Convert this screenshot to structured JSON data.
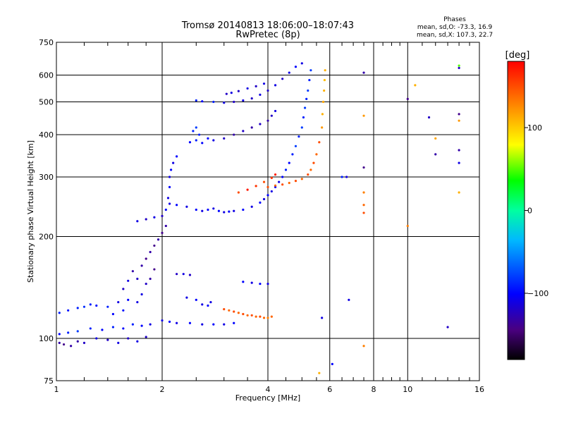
{
  "chart_data": {
    "type": "scatter",
    "title": "Tromsø 20140813 18:06:00–18:07:43",
    "subtitle": "RwPretec (8p)",
    "xlabel": "Frequency [MHz]",
    "ylabel": "Stationary phase Virtual Height [km]",
    "x_scale": "log",
    "y_scale": "log",
    "xlim": [
      1,
      16
    ],
    "ylim": [
      75,
      750
    ],
    "x_ticks": [
      1,
      2,
      4,
      6,
      8,
      10,
      16
    ],
    "x_tick_labels": [
      "1",
      "2",
      "4",
      "6",
      "8",
      "10",
      "16"
    ],
    "y_ticks": [
      75,
      100,
      200,
      300,
      400,
      500,
      600,
      750
    ],
    "y_tick_labels": [
      "75",
      "100",
      "200",
      "300",
      "400",
      "500",
      "600",
      "750"
    ],
    "x_minor_ticks": [
      1.2,
      1.4,
      1.6,
      1.8,
      2.5,
      3,
      3.5,
      4.5,
      5,
      5.5,
      6.5,
      7,
      7.5,
      8.5,
      9,
      9.5,
      11,
      12,
      13,
      14,
      15
    ],
    "grid": true,
    "phases": {
      "heading": "Phases",
      "line_o": "mean, sd,O: -73.3, 16.9",
      "line_x": "mean, sd,X: 107.3, 22.7"
    },
    "colorbar": {
      "label": "[deg]",
      "range": [
        -180,
        180
      ],
      "ticks": [
        100,
        0,
        -100
      ],
      "tick_labels": [
        "100",
        "0",
        "−100"
      ]
    },
    "series": [
      {
        "points": [
          [
            1.02,
            97,
            -130
          ],
          [
            1.05,
            96,
            -140
          ],
          [
            1.1,
            95,
            -130
          ],
          [
            1.15,
            98,
            -130
          ],
          [
            1.2,
            97,
            -120
          ],
          [
            1.3,
            100,
            -110
          ],
          [
            1.4,
            99,
            -120
          ],
          [
            1.5,
            97,
            -110
          ],
          [
            1.6,
            100,
            -120
          ],
          [
            1.7,
            98,
            -110
          ],
          [
            1.8,
            101,
            -120
          ]
        ]
      },
      {
        "points": [
          [
            1.02,
            103,
            -100
          ],
          [
            1.08,
            104,
            -90
          ],
          [
            1.15,
            105,
            -80
          ],
          [
            1.25,
            107,
            -90
          ],
          [
            1.35,
            106,
            -100
          ],
          [
            1.45,
            108,
            -90
          ],
          [
            1.55,
            107,
            -100
          ],
          [
            1.65,
            110,
            -90
          ],
          [
            1.75,
            109,
            -100
          ],
          [
            1.85,
            110,
            -110
          ]
        ]
      },
      {
        "points": [
          [
            1.02,
            119,
            -90
          ],
          [
            1.08,
            121,
            -95
          ],
          [
            1.15,
            123,
            -90
          ],
          [
            1.2,
            124,
            -85
          ],
          [
            1.25,
            126,
            -90
          ],
          [
            1.3,
            125,
            -95
          ],
          [
            1.4,
            124,
            -90
          ],
          [
            1.45,
            118,
            -100
          ],
          [
            1.55,
            121,
            -95
          ],
          [
            1.6,
            130,
            -100
          ],
          [
            1.7,
            128,
            -110
          ]
        ]
      },
      {
        "points": [
          [
            1.5,
            128,
            -110
          ],
          [
            1.55,
            140,
            -120
          ],
          [
            1.6,
            148,
            -110
          ],
          [
            1.65,
            158,
            -130
          ],
          [
            1.7,
            150,
            -120
          ],
          [
            1.75,
            164,
            -130
          ],
          [
            1.8,
            172,
            -140
          ],
          [
            1.85,
            180,
            -130
          ],
          [
            1.9,
            188,
            -140
          ],
          [
            1.95,
            196,
            -130
          ],
          [
            2,
            205,
            -140
          ],
          [
            2.05,
            215,
            -130
          ],
          [
            1.9,
            160,
            -140
          ],
          [
            1.85,
            150,
            -130
          ],
          [
            1.8,
            145,
            -120
          ],
          [
            1.75,
            135,
            -110
          ]
        ]
      },
      {
        "points": [
          [
            1.7,
            222,
            -110
          ],
          [
            1.8,
            225,
            -120
          ],
          [
            1.9,
            228,
            -110
          ],
          [
            2,
            230,
            -120
          ],
          [
            2.05,
            240,
            -100
          ],
          [
            2.08,
            260,
            -110
          ],
          [
            2.1,
            280,
            -100
          ],
          [
            2.1,
            300,
            -110
          ],
          [
            2.12,
            315,
            -100
          ],
          [
            2.15,
            330,
            -110
          ],
          [
            2.2,
            345,
            -100
          ]
        ]
      },
      {
        "points": [
          [
            2,
            113,
            -110
          ],
          [
            2.1,
            112,
            -100
          ],
          [
            2.2,
            111,
            -110
          ],
          [
            2.4,
            111,
            -100
          ],
          [
            2.6,
            110,
            -110
          ],
          [
            2.8,
            110,
            -100
          ],
          [
            3,
            110,
            -110
          ],
          [
            3.2,
            111,
            -100
          ]
        ]
      },
      {
        "points": [
          [
            2.35,
            132,
            -110
          ],
          [
            2.5,
            130,
            -100
          ],
          [
            2.6,
            126,
            -110
          ],
          [
            2.7,
            125,
            -100
          ],
          [
            2.75,
            128,
            -110
          ],
          [
            2.2,
            155,
            -120
          ],
          [
            2.3,
            155,
            -110
          ],
          [
            2.4,
            154,
            -120
          ]
        ]
      },
      {
        "points": [
          [
            2.1,
            250,
            -110
          ],
          [
            2.2,
            248,
            -100
          ],
          [
            2.35,
            245,
            -110
          ],
          [
            2.5,
            240,
            -100
          ],
          [
            2.6,
            238,
            -110
          ],
          [
            2.7,
            240,
            -100
          ],
          [
            2.8,
            242,
            -110
          ],
          [
            2.9,
            238,
            -100
          ],
          [
            3,
            236,
            -110
          ],
          [
            3.1,
            237,
            -100
          ],
          [
            3.2,
            238,
            -110
          ],
          [
            3.4,
            240,
            -100
          ],
          [
            3.6,
            245,
            -110
          ],
          [
            3.8,
            252,
            -100
          ],
          [
            3.9,
            258,
            -110
          ],
          [
            4,
            265,
            -100
          ],
          [
            4.1,
            272,
            -110
          ],
          [
            4.2,
            280,
            -100
          ],
          [
            4.3,
            290,
            -110
          ],
          [
            4.4,
            300,
            -100
          ],
          [
            4.5,
            315,
            -90
          ],
          [
            4.6,
            330,
            -100
          ],
          [
            4.7,
            350,
            -90
          ],
          [
            4.8,
            370,
            -80
          ],
          [
            4.9,
            395,
            -90
          ],
          [
            5,
            420,
            -80
          ],
          [
            5.05,
            450,
            -90
          ],
          [
            5.1,
            480,
            -80
          ],
          [
            5.15,
            510,
            -90
          ],
          [
            5.2,
            540,
            -80
          ],
          [
            5.25,
            580,
            -90
          ],
          [
            5.3,
            620,
            -80
          ]
        ]
      },
      {
        "points": [
          [
            2.4,
            380,
            -100
          ],
          [
            2.5,
            385,
            -90
          ],
          [
            2.6,
            378,
            -100
          ],
          [
            2.45,
            410,
            -90
          ],
          [
            2.5,
            420,
            -80
          ],
          [
            2.55,
            400,
            -90
          ],
          [
            2.7,
            390,
            -100
          ],
          [
            2.8,
            385,
            -110
          ],
          [
            3,
            390,
            -120
          ],
          [
            3.2,
            400,
            -130
          ],
          [
            3.4,
            410,
            -120
          ],
          [
            3.6,
            420,
            -130
          ],
          [
            3.8,
            430,
            -120
          ],
          [
            4,
            440,
            -130
          ],
          [
            4.1,
            455,
            -120
          ],
          [
            4.2,
            470,
            -110
          ]
        ]
      },
      {
        "points": [
          [
            2.5,
            505,
            -90
          ],
          [
            2.6,
            502,
            -100
          ],
          [
            2.8,
            500,
            -90
          ],
          [
            3,
            497,
            -110
          ],
          [
            3.2,
            500,
            -120
          ],
          [
            3.4,
            505,
            -110
          ],
          [
            3.6,
            512,
            -120
          ],
          [
            3.8,
            525,
            -110
          ],
          [
            4,
            540,
            -120
          ],
          [
            4.2,
            560,
            -110
          ],
          [
            4.4,
            585,
            -120
          ],
          [
            4.6,
            610,
            -110
          ],
          [
            4.8,
            635,
            -100
          ],
          [
            5,
            650,
            -110
          ]
        ]
      },
      {
        "points": [
          [
            3.05,
            528,
            -120
          ],
          [
            3.15,
            532,
            -110
          ],
          [
            3.3,
            538,
            -120
          ],
          [
            3.5,
            548,
            -110
          ],
          [
            3.7,
            556,
            -120
          ],
          [
            3.9,
            566,
            -110
          ]
        ]
      },
      {
        "points": [
          [
            3,
            122,
            150
          ],
          [
            3.1,
            121,
            140
          ],
          [
            3.2,
            120,
            150
          ],
          [
            3.3,
            119,
            140
          ],
          [
            3.4,
            118,
            150
          ],
          [
            3.5,
            117,
            140
          ],
          [
            3.6,
            117,
            150
          ],
          [
            3.7,
            116,
            140
          ],
          [
            3.8,
            116,
            150
          ],
          [
            3.9,
            115,
            140
          ],
          [
            4,
            115,
            130
          ],
          [
            4.1,
            116,
            140
          ]
        ]
      },
      {
        "points": [
          [
            3.3,
            270,
            150
          ],
          [
            3.5,
            275,
            170
          ],
          [
            3.7,
            282,
            160
          ],
          [
            3.9,
            290,
            150
          ],
          [
            4.1,
            298,
            160
          ],
          [
            4.2,
            305,
            170
          ]
        ]
      },
      {
        "points": [
          [
            4,
            280,
            150
          ],
          [
            4.2,
            283,
            140
          ],
          [
            4.4,
            285,
            150
          ],
          [
            4.6,
            288,
            140
          ],
          [
            4.8,
            292,
            150
          ],
          [
            5,
            296,
            140
          ],
          [
            5.2,
            305,
            150
          ],
          [
            5.3,
            315,
            140
          ],
          [
            5.4,
            330,
            150
          ],
          [
            5.5,
            350,
            140
          ],
          [
            5.6,
            380,
            150
          ],
          [
            5.7,
            420,
            120
          ],
          [
            5.72,
            460,
            110
          ],
          [
            5.75,
            500,
            115
          ],
          [
            5.78,
            540,
            110
          ],
          [
            5.8,
            580,
            105
          ],
          [
            5.82,
            620,
            110
          ]
        ]
      },
      {
        "points": [
          [
            3.4,
            147,
            -100
          ],
          [
            3.6,
            146,
            -110
          ],
          [
            3.8,
            145,
            -100
          ],
          [
            4,
            145,
            -110
          ]
        ]
      },
      {
        "points": [
          [
            7.5,
            610,
            -130
          ],
          [
            10,
            510,
            -140
          ],
          [
            11.5,
            450,
            -120
          ],
          [
            12,
            350,
            -130
          ],
          [
            14,
            630,
            -120
          ],
          [
            14,
            460,
            -140
          ],
          [
            14,
            360,
            -130
          ],
          [
            14,
            330,
            -110
          ],
          [
            7.5,
            320,
            -140
          ],
          [
            6.7,
            300,
            -110
          ],
          [
            6.5,
            300,
            -90
          ],
          [
            13,
            108,
            -120
          ],
          [
            6.1,
            84,
            -100
          ],
          [
            5.7,
            115,
            -110
          ],
          [
            6.8,
            130,
            -110
          ]
        ]
      },
      {
        "points": [
          [
            7.5,
            455,
            120
          ],
          [
            7.5,
            270,
            130
          ],
          [
            7.5,
            248,
            140
          ],
          [
            7.5,
            235,
            150
          ],
          [
            7.5,
            95,
            130
          ],
          [
            10.5,
            560,
            110
          ],
          [
            12,
            390,
            115
          ],
          [
            14,
            640,
            50
          ],
          [
            14,
            440,
            120
          ],
          [
            14,
            270,
            110
          ],
          [
            10,
            215,
            130
          ],
          [
            5.6,
            79,
            110
          ]
        ]
      }
    ]
  }
}
